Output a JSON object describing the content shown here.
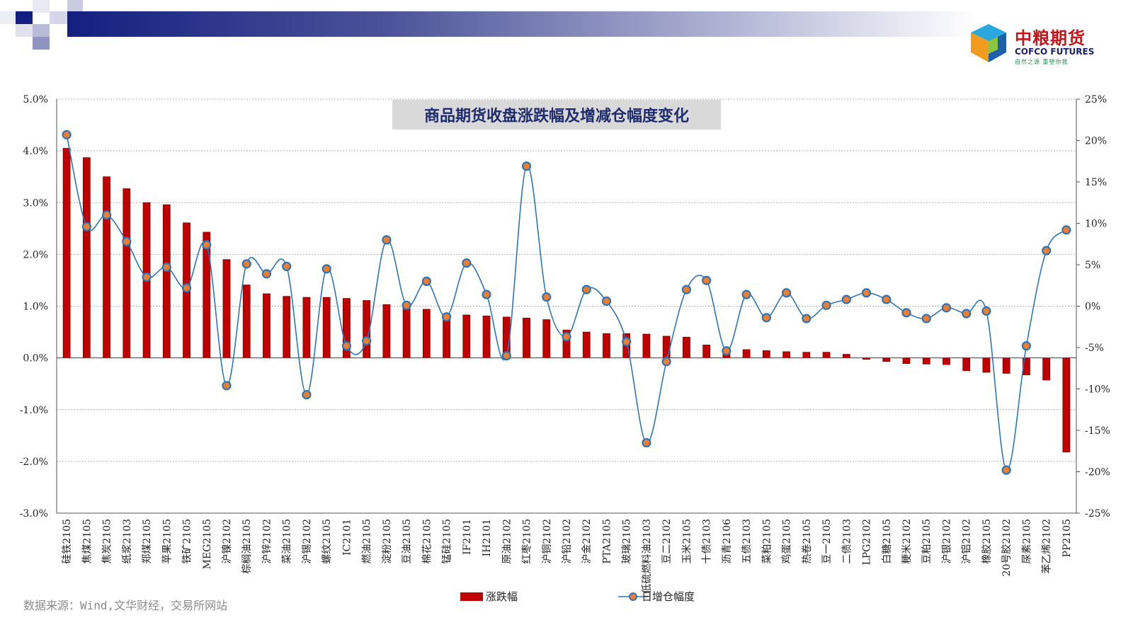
{
  "source_note": "数据来源：Wind,文华财经，交易所网站",
  "logo": {
    "cn": "中粮期货",
    "en": "COFCO FUTURES",
    "sub": "自然之源 重塑你我"
  },
  "colors": {
    "bar": "#c00000",
    "line": "#2e75b6",
    "marker_fill": "#ed7d31",
    "banner": "#151f80"
  },
  "chart_data": {
    "type": "bar+line",
    "title": "商品期货收盘涨跌幅及增减仓幅度变化",
    "legend_position": "bottom",
    "grid": true,
    "categories": [
      "硅铁2105",
      "焦煤2105",
      "焦炭2105",
      "纸浆2103",
      "郑煤2105",
      "苹果2105",
      "铁矿2105",
      "MEG2105",
      "沪镍2102",
      "棕榈油2105",
      "沪锌2102",
      "菜油2105",
      "沪锡2102",
      "螺纹2105",
      "IC2101",
      "燃油2105",
      "淀粉2105",
      "豆油2105",
      "棉花2105",
      "锰硅2105",
      "IF2101",
      "IH2101",
      "原油2102",
      "红枣2105",
      "沪铜2102",
      "沪铅2102",
      "沪金2102",
      "PTA2105",
      "玻璃2105",
      "低硫燃料油2103",
      "豆二2102",
      "玉米2105",
      "十债2103",
      "沥青2106",
      "五债2103",
      "菜粕2105",
      "鸡蛋2105",
      "热卷2105",
      "豆一2105",
      "二债2103",
      "LPG2102",
      "白糖2105",
      "粳米2102",
      "豆粕2105",
      "沪银2102",
      "沪铝2102",
      "橡胶2105",
      "20号胶2102",
      "尿素2105",
      "苯乙烯2102",
      "PP2105"
    ],
    "series": [
      {
        "name": "涨跌幅",
        "type": "bar",
        "axis": "left",
        "values": [
          4.05,
          3.87,
          3.5,
          3.27,
          3.0,
          2.96,
          2.61,
          2.43,
          1.9,
          1.41,
          1.24,
          1.19,
          1.17,
          1.17,
          1.15,
          1.11,
          1.03,
          1.0,
          0.94,
          0.85,
          0.83,
          0.81,
          0.79,
          0.77,
          0.74,
          0.54,
          0.5,
          0.47,
          0.47,
          0.46,
          0.42,
          0.4,
          0.25,
          0.17,
          0.16,
          0.14,
          0.12,
          0.11,
          0.11,
          0.07,
          -0.03,
          -0.07,
          -0.11,
          -0.12,
          -0.13,
          -0.25,
          -0.28,
          -0.3,
          -0.33,
          -0.43,
          -1.82
        ]
      },
      {
        "name": "日增仓幅度",
        "type": "line",
        "axis": "right",
        "values": [
          20.7,
          9.6,
          11.0,
          7.8,
          3.5,
          4.7,
          2.2,
          7.4,
          -9.6,
          5.1,
          3.9,
          4.8,
          -10.7,
          4.5,
          -4.8,
          -4.2,
          8.0,
          0.1,
          3.0,
          -1.3,
          5.2,
          1.4,
          -6.0,
          16.9,
          1.1,
          -3.7,
          2.0,
          0.6,
          -4.3,
          -16.5,
          -6.7,
          2.0,
          3.1,
          -5.4,
          1.4,
          -1.4,
          1.6,
          -1.5,
          0.1,
          0.8,
          1.6,
          0.8,
          -0.8,
          -1.5,
          -0.2,
          -0.9,
          -0.6,
          -19.8,
          -4.8,
          6.7,
          9.2
        ]
      }
    ],
    "y_left": {
      "min": -3.0,
      "max": 5.0,
      "step": 1.0,
      "ticks": [
        "-3.0%",
        "-2.0%",
        "-1.0%",
        "0.0%",
        "1.0%",
        "2.0%",
        "3.0%",
        "4.0%",
        "5.0%"
      ]
    },
    "y_right": {
      "min": -25,
      "max": 25,
      "step": 5,
      "ticks": [
        "-25%",
        "-20%",
        "-15%",
        "-10%",
        "-5%",
        "0%",
        "5%",
        "10%",
        "15%",
        "20%",
        "25%"
      ]
    }
  }
}
